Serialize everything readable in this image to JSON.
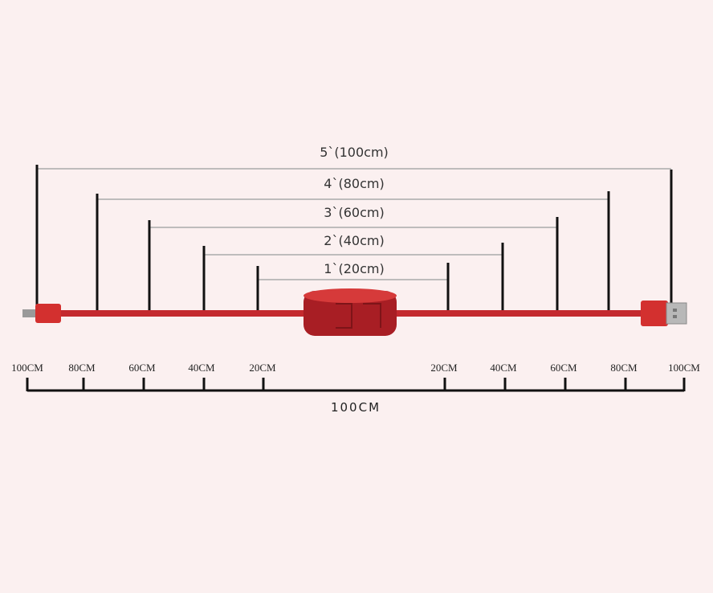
{
  "levels": [
    {
      "label": "5`(100cm)"
    },
    {
      "label": "4`(80cm)"
    },
    {
      "label": "3`(60cm)"
    },
    {
      "label": "2`(40cm)"
    },
    {
      "label": "1`(20cm)"
    }
  ],
  "scale": {
    "left": [
      "100CM",
      "80CM",
      "60CM",
      "40CM",
      "20CM"
    ],
    "right": [
      "20CM",
      "40CM",
      "60CM",
      "80CM",
      "100CM"
    ],
    "total": "100CM"
  }
}
